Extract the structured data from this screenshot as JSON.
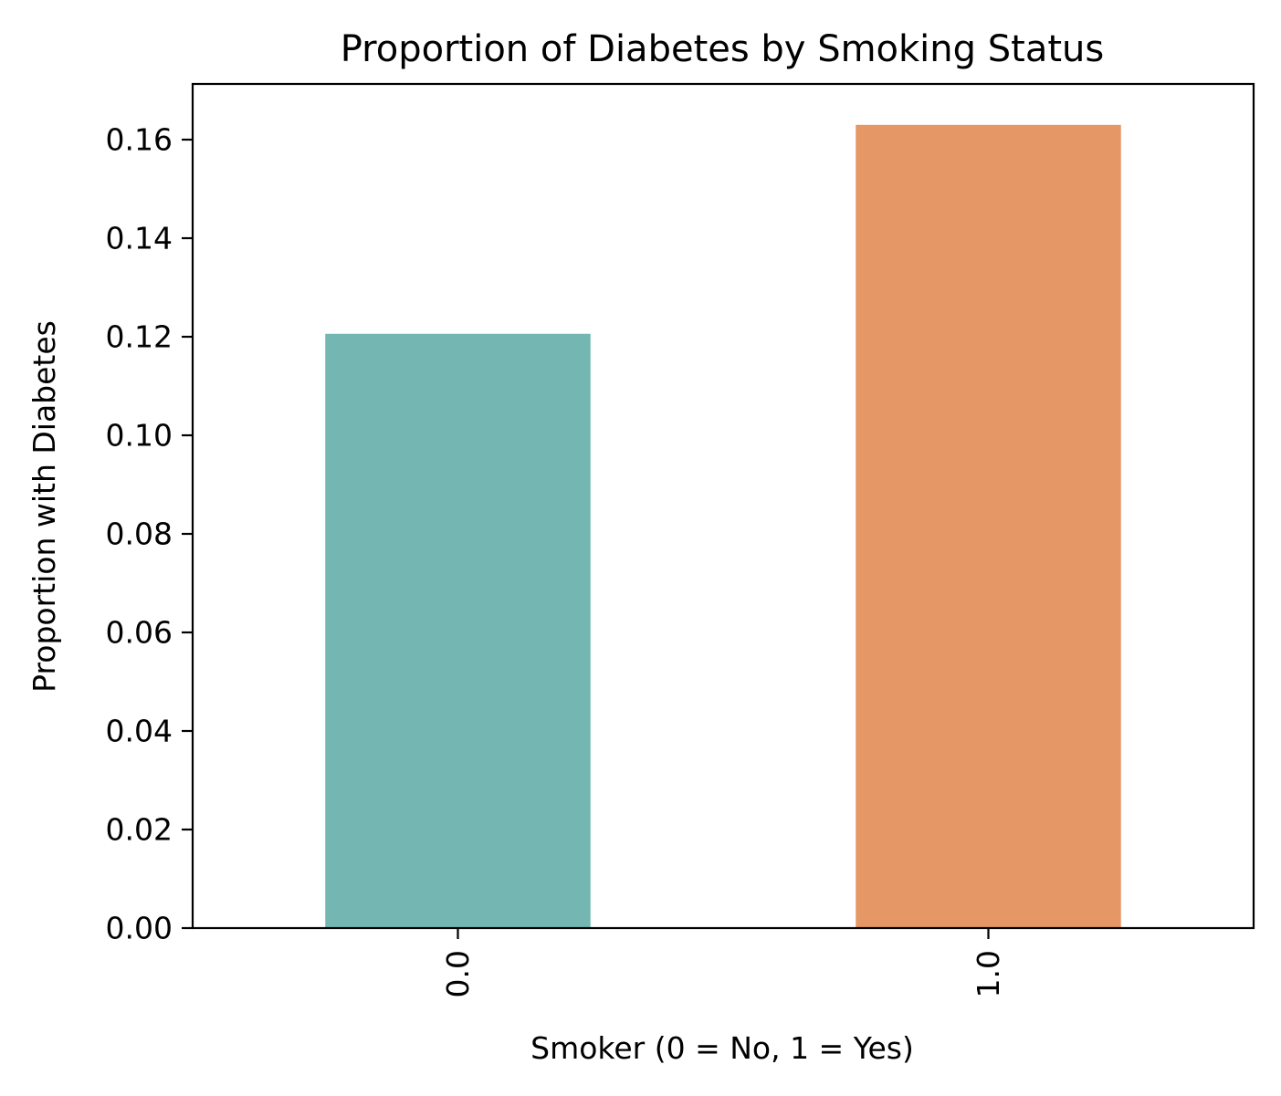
{
  "chart_data": {
    "type": "bar",
    "title": "Proportion of Diabetes by Smoking Status",
    "xlabel": "Smoker (0 = No, 1 = Yes)",
    "ylabel": "Proportion with Diabetes",
    "categories": [
      "0.0",
      "1.0"
    ],
    "values": [
      0.1206,
      0.163
    ],
    "colors": [
      "#74b7b2",
      "#e59866"
    ],
    "ylim": [
      0,
      0.1713
    ],
    "yticks": [
      0.0,
      0.02,
      0.04,
      0.06,
      0.08,
      0.1,
      0.12,
      0.14,
      0.16
    ],
    "ytick_labels": [
      "0.00",
      "0.02",
      "0.04",
      "0.06",
      "0.08",
      "0.10",
      "0.12",
      "0.14",
      "0.16"
    ],
    "grid": false,
    "legend": "none"
  }
}
